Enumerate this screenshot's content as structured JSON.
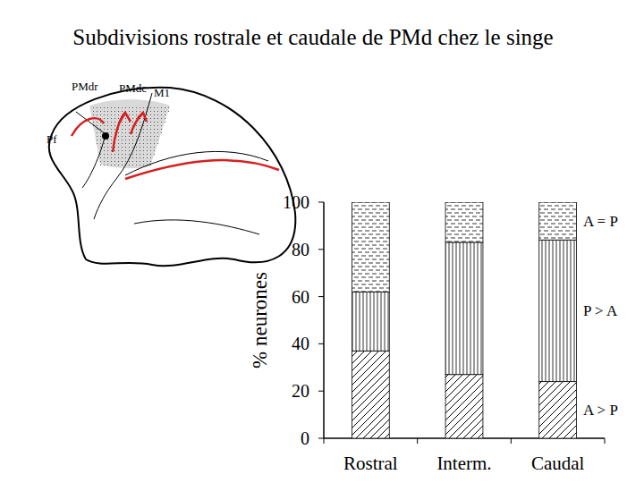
{
  "chart_data": {
    "type": "bar",
    "stacked": true,
    "title": "Subdivisions rostrale et caudale de PMd chez le singe",
    "y_label": "% neurones",
    "annotations": [
      "PMdr",
      "PMdc",
      "M1",
      "Pf"
    ],
    "categories": [
      "Rostral",
      "Interm.",
      "Caudal"
    ],
    "series": [
      {
        "name": "A > P",
        "color": "#000000",
        "values": [
          37,
          27,
          24
        ]
      },
      {
        "name": "P > A",
        "color": "#000000",
        "values": [
          25,
          56,
          60
        ]
      },
      {
        "name": "A = P",
        "color": "#000000",
        "values": [
          38,
          17,
          16
        ]
      }
    ],
    "ylim": [
      0,
      100
    ],
    "yticks": [
      0,
      20,
      40,
      60,
      80,
      100
    ],
    "grid": false
  }
}
